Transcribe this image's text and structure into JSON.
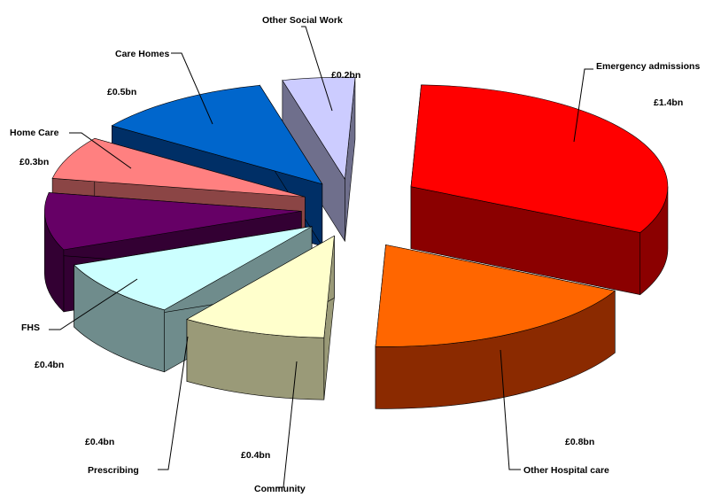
{
  "chart_data": {
    "type": "pie",
    "title": "",
    "series": [
      {
        "name": "Emergency admissions",
        "value": 1.4,
        "value_label": "£1.4bn",
        "color": "#ff0000",
        "side": "#8b0000"
      },
      {
        "name": "Other Hospital care",
        "value": 0.8,
        "value_label": "£0.8bn",
        "color": "#ff6600",
        "side": "#8b2a00"
      },
      {
        "name": "Community",
        "value": 0.4,
        "value_label": "£0.4bn",
        "color": "#ffffcc",
        "side": "#9a9a78"
      },
      {
        "name": "Prescribing",
        "value": 0.4,
        "value_label": "£0.4bn",
        "color": "#ccffff",
        "side": "#6f8c8c"
      },
      {
        "name": "FHS",
        "value": 0.4,
        "value_label": "£0.4bn",
        "color": "#660066",
        "side": "#330033"
      },
      {
        "name": "Home Care",
        "value": 0.3,
        "value_label": "£0.3bn",
        "color": "#ff8080",
        "side": "#8b4545"
      },
      {
        "name": "Care Homes",
        "value": 0.5,
        "value_label": "£0.5bn",
        "color": "#0066cc",
        "side": "#002f66"
      },
      {
        "name": "Other Social Work",
        "value": 0.2,
        "value_label": "£0.2bn",
        "color": "#ccccff",
        "side": "#6f6f8c"
      }
    ],
    "legend": "none",
    "style": "3d-exploded"
  }
}
